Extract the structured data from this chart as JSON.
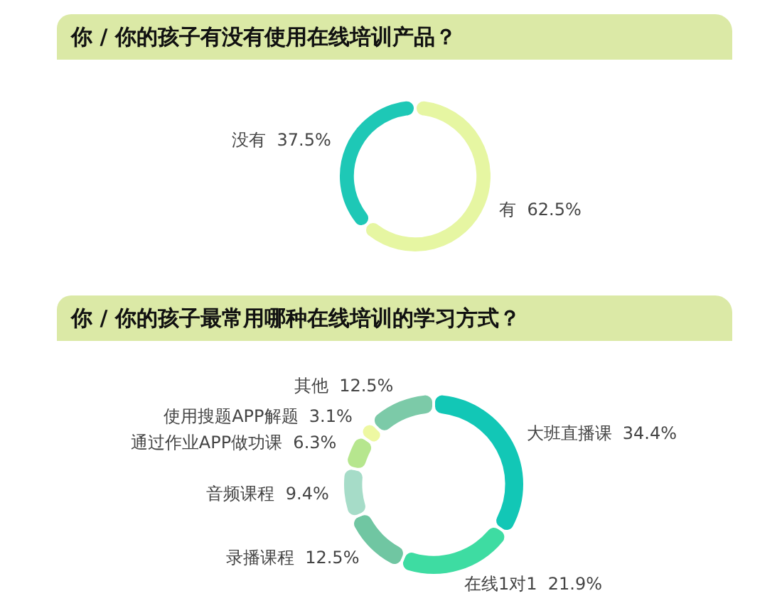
{
  "chart_data": [
    {
      "type": "donut",
      "title": "你 / 你的孩子有没有使用在线培训产品？",
      "categories": [
        "有",
        "没有"
      ],
      "values": [
        62.5,
        37.5
      ],
      "value_labels": [
        "62.5%",
        "37.5%"
      ],
      "colors": [
        "#e6f6a2",
        "#1ec8b6"
      ]
    },
    {
      "type": "donut",
      "title": "你 / 你的孩子最常用哪种在线培训的学习方式？",
      "categories": [
        "大班直播课",
        "在线1对1",
        "录播课程",
        "音频课程",
        "通过作业APP做功课",
        "使用搜题APP解题",
        "其他"
      ],
      "values": [
        34.4,
        21.9,
        12.5,
        9.4,
        6.3,
        3.1,
        12.5
      ],
      "value_labels": [
        "34.4%",
        "21.9%",
        "12.5%",
        "9.4%",
        "6.3%",
        "3.1%",
        "12.5%"
      ],
      "colors": [
        "#12c7b6",
        "#3edca2",
        "#70c6a2",
        "#a6dcc8",
        "#b6e68e",
        "#eef8a2",
        "#7ccaa8"
      ]
    }
  ]
}
